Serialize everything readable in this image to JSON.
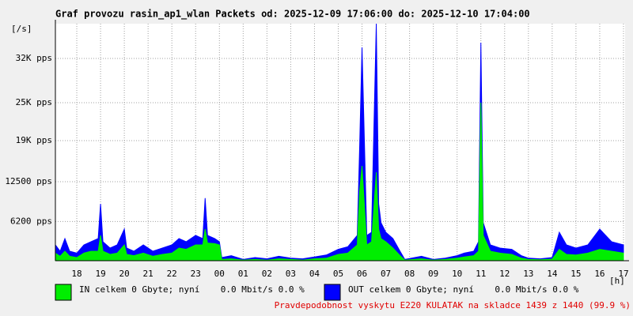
{
  "chart_data": {
    "type": "area",
    "title": "Graf provozu rasin_ap1_wlan Packets od: 2025-12-09 17:06:00 do: 2025-12-10 17:04:00",
    "y_label": "[/s]",
    "x_label": "[h]",
    "annotation": "Pravdepodobnost vyskytu E220 KULATAK na skladce 1439 z 1440 (99.9 %)",
    "xlim": [
      17.1,
      41.067
    ],
    "ylim": [
      0,
      37500
    ],
    "xticks": [
      18,
      19,
      20,
      21,
      22,
      23,
      {
        "value": 24,
        "label": "00"
      },
      {
        "value": 25,
        "label": "01"
      },
      {
        "value": 26,
        "label": "02"
      },
      {
        "value": 27,
        "label": "03"
      },
      {
        "value": 28,
        "label": "04"
      },
      {
        "value": 29,
        "label": "05"
      },
      {
        "value": 30,
        "label": "06"
      },
      {
        "value": 31,
        "label": "07"
      },
      {
        "value": 32,
        "label": "08"
      },
      {
        "value": 33,
        "label": "09"
      },
      {
        "value": 34,
        "label": "10"
      },
      {
        "value": 35,
        "label": "11"
      },
      {
        "value": 36,
        "label": "12"
      },
      {
        "value": 37,
        "label": "13"
      },
      {
        "value": 38,
        "label": "14"
      },
      {
        "value": 39,
        "label": "15"
      },
      {
        "value": 40,
        "label": "16"
      },
      {
        "value": 41,
        "label": "17"
      }
    ],
    "yticks": [
      {
        "value": 6200,
        "label": "6200 pps"
      },
      {
        "value": 12500,
        "label": "12500 pps"
      },
      {
        "value": 19000,
        "label": "19K pps"
      },
      {
        "value": 25000,
        "label": "25K pps"
      },
      {
        "value": 32000,
        "label": "32K pps"
      }
    ],
    "grid": true,
    "x": [
      17.1,
      17.3,
      17.5,
      17.7,
      18.0,
      18.3,
      18.6,
      18.9,
      19.0,
      19.1,
      19.4,
      19.7,
      20.0,
      20.1,
      20.4,
      20.8,
      21.2,
      21.6,
      22.0,
      22.3,
      22.6,
      23.0,
      23.3,
      23.4,
      23.5,
      23.8,
      24.0,
      24.1,
      24.5,
      25.0,
      25.5,
      26.0,
      26.5,
      27.0,
      27.5,
      28.0,
      28.5,
      29.0,
      29.4,
      29.8,
      29.9,
      30.0,
      30.2,
      30.4,
      30.6,
      30.7,
      30.8,
      31.0,
      31.3,
      31.6,
      31.8,
      32.5,
      33.0,
      33.5,
      34.0,
      34.3,
      34.7,
      34.9,
      35.0,
      35.1,
      35.4,
      35.8,
      36.3,
      36.7,
      37.0,
      37.5,
      38.0,
      38.3,
      38.6,
      39.0,
      39.5,
      40.0,
      40.5,
      41.0
    ],
    "series": [
      {
        "name": "OUT celkem 0 Gbyte; nyní    0.0 Mbit/s 0.0 %",
        "color": "#0000ff",
        "values": [
          2500,
          1500,
          3500,
          1500,
          1200,
          2500,
          3000,
          3500,
          9000,
          3000,
          2000,
          2500,
          5000,
          2000,
          1500,
          2500,
          1500,
          2000,
          2500,
          3500,
          3000,
          4000,
          3500,
          9900,
          4000,
          3500,
          3000,
          500,
          800,
          200,
          500,
          300,
          700,
          400,
          300,
          600,
          900,
          1800,
          2200,
          4000,
          18000,
          33750,
          4000,
          4500,
          37500,
          9000,
          6000,
          4500,
          3500,
          1500,
          200,
          700,
          200,
          400,
          800,
          1200,
          1500,
          3000,
          34500,
          6000,
          2500,
          2000,
          1800,
          800,
          400,
          300,
          500,
          4500,
          2500,
          2000,
          2500,
          5000,
          3000,
          2500
        ]
      },
      {
        "name": "IN celkem 0 Gbyte; nyní    0.0 Mbit/s 0.0 %",
        "color": "#00ee00",
        "values": [
          1200,
          700,
          1500,
          700,
          500,
          1200,
          1500,
          1500,
          4000,
          1500,
          1000,
          1200,
          2500,
          1000,
          800,
          1200,
          700,
          1000,
          1200,
          2000,
          1800,
          2500,
          2500,
          5000,
          2800,
          2700,
          2500,
          200,
          300,
          100,
          200,
          100,
          300,
          200,
          100,
          300,
          400,
          1000,
          1200,
          2500,
          11000,
          15000,
          2500,
          3000,
          14000,
          5000,
          3500,
          3000,
          2000,
          800,
          100,
          300,
          100,
          200,
          400,
          600,
          800,
          1500,
          25000,
          4000,
          1500,
          1200,
          1000,
          400,
          200,
          150,
          250,
          1800,
          1000,
          900,
          1200,
          1800,
          1500,
          1200
        ]
      }
    ]
  }
}
